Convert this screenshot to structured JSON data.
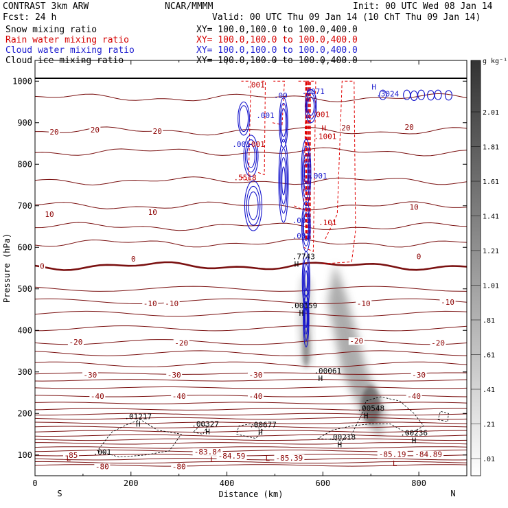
{
  "header": {
    "model": "CONTRAST  3km ARW",
    "org": "NCAR/MMMM",
    "init": "Init: 00 UTC Wed 08 Jan 14",
    "fcst": "Fcst:   24 h",
    "valid": "Valid: 00 UTC Thu 09 Jan 14 (10 ChT Thu 09 Jan 14)",
    "lines": [
      {
        "field": "Snow mixing ratio",
        "xy": "XY= 100.0,100.0 to 100.0,400.0",
        "color": "#000000"
      },
      {
        "field": "Rain water mixing ratio",
        "xy": "XY= 100.0,100.0 to 100.0,400.0",
        "color": "#d40000"
      },
      {
        "field": "Cloud water mixing ratio",
        "xy": "XY= 100.0,100.0 to 100.0,400.0",
        "color": "#1f1fd0"
      },
      {
        "field": "Cloud ice mixing ratio",
        "xy": "XY= 100.0,100.0 to 100.0,400.0",
        "color": "#000000"
      }
    ]
  },
  "colors": {
    "temperature": "#7a1010",
    "zero_line": "#7a1010",
    "rain": "#e00000",
    "cloud_water": "#1515cc",
    "label_temp": "#8b0000",
    "label_rain": "#c00000",
    "label_cloud": "#1515cc"
  },
  "chart_data": {
    "type": "heatmap",
    "xlabel": "Distance (km)",
    "ylabel": "Pressure (hPa)",
    "xlim": [
      0,
      900
    ],
    "ylim": [
      1050,
      50
    ],
    "x_ticks": [
      0,
      200,
      400,
      600,
      800
    ],
    "y_ticks": [
      100,
      200,
      300,
      400,
      500,
      600,
      700,
      800,
      900,
      1000
    ],
    "x_end_labels": {
      "left": "S",
      "right": "N"
    },
    "colorbar": {
      "unit": "g kg⁻¹",
      "ticks": [
        "2.01",
        "1.81",
        "1.61",
        "1.41",
        "1.21",
        "1.01",
        ".81",
        ".61",
        ".41",
        ".21",
        ".01"
      ]
    },
    "temperature_contour_labels": [
      {
        "x": 75,
        "p": 100,
        "text": "-85"
      },
      {
        "x": 140,
        "p": 72,
        "text": "-80"
      },
      {
        "x": 300,
        "p": 72,
        "text": "-80"
      },
      {
        "x": 360,
        "p": 108,
        "text": "-83.84"
      },
      {
        "x": 410,
        "p": 98,
        "text": "-84.59"
      },
      {
        "x": 530,
        "p": 93,
        "text": "-85.39"
      },
      {
        "x": 745,
        "p": 102,
        "text": "-85.19"
      },
      {
        "x": 820,
        "p": 102,
        "text": "-84.89"
      },
      {
        "x": 130,
        "p": 242,
        "text": "-40"
      },
      {
        "x": 300,
        "p": 242,
        "text": "-40"
      },
      {
        "x": 460,
        "p": 242,
        "text": "-40"
      },
      {
        "x": 790,
        "p": 242,
        "text": "-40"
      },
      {
        "x": 115,
        "p": 293,
        "text": "-30"
      },
      {
        "x": 290,
        "p": 293,
        "text": "-30"
      },
      {
        "x": 460,
        "p": 293,
        "text": "-30"
      },
      {
        "x": 800,
        "p": 293,
        "text": "-30"
      },
      {
        "x": 85,
        "p": 372,
        "text": "-20"
      },
      {
        "x": 305,
        "p": 370,
        "text": "-20"
      },
      {
        "x": 670,
        "p": 375,
        "text": "-20"
      },
      {
        "x": 840,
        "p": 370,
        "text": "-20"
      },
      {
        "x": 240,
        "p": 465,
        "text": "-10"
      },
      {
        "x": 285,
        "p": 465,
        "text": "-10"
      },
      {
        "x": 685,
        "p": 465,
        "text": "-10"
      },
      {
        "x": 860,
        "p": 468,
        "text": "-10"
      },
      {
        "x": 15,
        "p": 555,
        "text": "0"
      },
      {
        "x": 205,
        "p": 572,
        "text": "0"
      },
      {
        "x": 800,
        "p": 578,
        "text": "0"
      },
      {
        "x": 30,
        "p": 680,
        "text": "10"
      },
      {
        "x": 245,
        "p": 685,
        "text": "10"
      },
      {
        "x": 790,
        "p": 697,
        "text": "10"
      },
      {
        "x": 40,
        "p": 878,
        "text": "20"
      },
      {
        "x": 125,
        "p": 883,
        "text": "20"
      },
      {
        "x": 255,
        "p": 880,
        "text": "20"
      },
      {
        "x": 648,
        "p": 888,
        "text": "20"
      },
      {
        "x": 780,
        "p": 890,
        "text": "20"
      }
    ],
    "extrema_labels": [
      {
        "kind": "L",
        "x": 70,
        "p": 92,
        "value": ".001",
        "vx": 140,
        "vp": 107
      },
      {
        "kind": "L",
        "x": 370,
        "p": 90,
        "value": "",
        "vx": 0,
        "vp": 0
      },
      {
        "kind": "L",
        "x": 485,
        "p": 92,
        "value": "",
        "vx": 0,
        "vp": 0
      },
      {
        "kind": "L",
        "x": 750,
        "p": 80,
        "value": "",
        "vx": 0,
        "vp": 0
      },
      {
        "kind": "H",
        "x": 215,
        "p": 175,
        "value": ".01217",
        "vx": 215,
        "vp": 193
      },
      {
        "kind": "H",
        "x": 360,
        "p": 157,
        "value": ".00327",
        "vx": 355,
        "vp": 175
      },
      {
        "kind": "H",
        "x": 470,
        "p": 155,
        "value": ".00677",
        "vx": 475,
        "vp": 173
      },
      {
        "kind": "H",
        "x": 635,
        "p": 125,
        "value": ".00218",
        "vx": 640,
        "vp": 143
      },
      {
        "kind": "H",
        "x": 790,
        "p": 135,
        "value": ".00236",
        "vx": 790,
        "vp": 153
      },
      {
        "kind": "H",
        "x": 690,
        "p": 195,
        "value": ".00548",
        "vx": 700,
        "vp": 213
      },
      {
        "kind": "H",
        "x": 595,
        "p": 285,
        "value": ".00061",
        "vx": 610,
        "vp": 303
      },
      {
        "kind": "H",
        "x": 555,
        "p": 442,
        "value": ".00159",
        "vx": 560,
        "vp": 460
      },
      {
        "kind": "H",
        "x": 545,
        "p": 560,
        "value": ".7743",
        "vx": 560,
        "vp": 578
      }
    ],
    "rain_labels": [
      {
        "x": 610,
        "p": 660,
        "text": ".101",
        "kind": ""
      },
      {
        "x": 605,
        "p": 867,
        "text": ".1001",
        "kind": "H"
      },
      {
        "x": 595,
        "p": 920,
        "text": ".001",
        "kind": ""
      },
      {
        "x": 460,
        "p": 991,
        "text": ".001",
        "kind": ""
      },
      {
        "x": 460,
        "p": 848,
        "text": ".001",
        "kind": ""
      },
      {
        "x": 438,
        "p": 768,
        "text": ".5518",
        "kind": ""
      }
    ],
    "cloud_labels": [
      {
        "x": 555,
        "p": 628,
        "text": ".001",
        "kind": ""
      },
      {
        "x": 555,
        "p": 665,
        "text": ".001",
        "kind": ""
      },
      {
        "x": 590,
        "p": 772,
        "text": ".001",
        "kind": ""
      },
      {
        "x": 430,
        "p": 848,
        "text": ".001",
        "kind": ""
      },
      {
        "x": 480,
        "p": 918,
        "text": ".001",
        "kind": ""
      },
      {
        "x": 512,
        "p": 966,
        "text": ".00",
        "kind": ""
      },
      {
        "x": 580,
        "p": 976,
        "text": ".0071",
        "kind": ""
      },
      {
        "x": 735,
        "p": 970,
        "text": ".3024",
        "kind": "H"
      }
    ]
  }
}
